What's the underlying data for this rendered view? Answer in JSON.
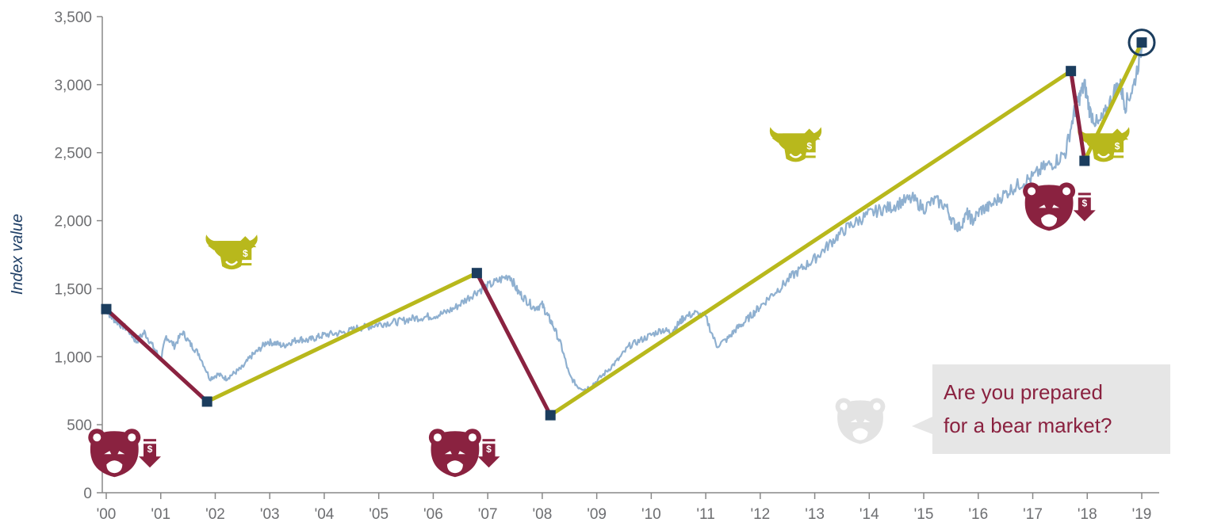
{
  "chart_data": {
    "type": "line",
    "title": "",
    "xlabel": "",
    "ylabel": "Index value",
    "ylim": [
      0,
      3500
    ],
    "xlim": [
      2000.0,
      2019.1
    ],
    "yticks": [
      0,
      500,
      1000,
      1500,
      2000,
      2500,
      3000,
      3500
    ],
    "ytick_labels": [
      "0",
      "500",
      "1,000",
      "1,500",
      "2,000",
      "2,500",
      "3,000",
      "3,500"
    ],
    "xticks": [
      2000,
      2001,
      2002,
      2003,
      2004,
      2005,
      2006,
      2007,
      2008,
      2009,
      2010,
      2011,
      2012,
      2013,
      2014,
      2015,
      2016,
      2017,
      2018,
      2019
    ],
    "xtick_labels": [
      "'00",
      "'01",
      "'02",
      "'03",
      "'04",
      "'05",
      "'06",
      "'07",
      "'08",
      "'09",
      "'10",
      "'11",
      "'12",
      "'13",
      "'14",
      "'15",
      "'16",
      "'17",
      "'18",
      "'19"
    ],
    "grid": false,
    "series": [
      {
        "kind": "index",
        "color": "#8fb0d0",
        "x": [
          2000.0,
          2000.1,
          2000.25,
          2000.4,
          2000.55,
          2000.7,
          2000.85,
          2001.0,
          2001.1,
          2001.25,
          2001.4,
          2001.55,
          2001.7,
          2001.9,
          2002.05,
          2002.2,
          2002.35,
          2002.5,
          2002.65,
          2002.8,
          2002.95,
          2003.1,
          2003.25,
          2003.4,
          2003.55,
          2003.7,
          2003.85,
          2004.0,
          2004.2,
          2004.4,
          2004.6,
          2004.8,
          2005.0,
          2005.2,
          2005.4,
          2005.6,
          2005.8,
          2006.0,
          2006.2,
          2006.4,
          2006.6,
          2006.8,
          2007.0,
          2007.2,
          2007.4,
          2007.55,
          2007.7,
          2007.85,
          2008.0,
          2008.1,
          2008.2,
          2008.35,
          2008.5,
          2008.65,
          2008.8,
          2009.0,
          2009.2,
          2009.4,
          2009.6,
          2009.8,
          2010.0,
          2010.2,
          2010.35,
          2010.5,
          2010.6,
          2010.8,
          2011.0,
          2011.2,
          2011.4,
          2011.55,
          2011.7,
          2011.85,
          2012.0,
          2012.2,
          2012.4,
          2012.6,
          2012.8,
          2013.0,
          2013.2,
          2013.4,
          2013.6,
          2013.8,
          2014.0,
          2014.2,
          2014.4,
          2014.6,
          2014.8,
          2015.0,
          2015.2,
          2015.4,
          2015.55,
          2015.65,
          2015.8,
          2015.9,
          2016.05,
          2016.2,
          2016.4,
          2016.6,
          2016.8,
          2017.0,
          2017.2,
          2017.4,
          2017.6,
          2017.75,
          2017.85,
          2017.95,
          2018.05,
          2018.2,
          2018.35,
          2018.5,
          2018.6,
          2018.7,
          2018.85,
          2019.0
        ],
        "y": [
          1350,
          1290,
          1240,
          1200,
          1110,
          1180,
          1080,
          980,
          1150,
          1080,
          1180,
          1090,
          1020,
          840,
          870,
          840,
          880,
          920,
          1000,
          1050,
          1110,
          1100,
          1080,
          1110,
          1130,
          1120,
          1140,
          1160,
          1170,
          1180,
          1210,
          1220,
          1240,
          1250,
          1260,
          1280,
          1290,
          1300,
          1320,
          1360,
          1420,
          1480,
          1520,
          1560,
          1600,
          1480,
          1420,
          1360,
          1380,
          1300,
          1230,
          1080,
          860,
          780,
          760,
          820,
          900,
          980,
          1080,
          1120,
          1160,
          1200,
          1180,
          1240,
          1290,
          1320,
          1290,
          1080,
          1130,
          1200,
          1250,
          1310,
          1370,
          1450,
          1520,
          1600,
          1660,
          1720,
          1800,
          1880,
          1950,
          2000,
          2050,
          2080,
          2100,
          2140,
          2160,
          2090,
          2150,
          2110,
          1980,
          1950,
          2050,
          2000,
          2080,
          2100,
          2170,
          2230,
          2280,
          2320,
          2390,
          2430,
          2500,
          2780,
          2900,
          3000,
          2800,
          2700,
          2800,
          2950,
          3000,
          2850,
          2990,
          3280
        ]
      }
    ],
    "phases": [
      {
        "kind": "bear",
        "start": {
          "x": 2000.0,
          "y": 1350
        },
        "end": {
          "x": 2001.85,
          "y": 670
        }
      },
      {
        "kind": "bull",
        "start": {
          "x": 2001.85,
          "y": 670
        },
        "end": {
          "x": 2006.8,
          "y": 1615
        }
      },
      {
        "kind": "bear",
        "start": {
          "x": 2006.8,
          "y": 1615
        },
        "end": {
          "x": 2008.15,
          "y": 570
        }
      },
      {
        "kind": "bull",
        "start": {
          "x": 2008.15,
          "y": 570
        },
        "end": {
          "x": 2017.7,
          "y": 3100
        }
      },
      {
        "kind": "bear",
        "start": {
          "x": 2017.7,
          "y": 3100
        },
        "end": {
          "x": 2017.95,
          "y": 2440
        }
      },
      {
        "kind": "bull",
        "start": {
          "x": 2017.95,
          "y": 2440
        },
        "end": {
          "x": 2019.0,
          "y": 3310
        }
      }
    ],
    "current_point": {
      "x": 2019.0,
      "y": 3310
    },
    "annotations": [
      {
        "icon": "bull-icon",
        "x": 2002.3,
        "y": 1770
      },
      {
        "icon": "dollar-up-arrow-icon",
        "x": 2002.55,
        "y": 1770
      },
      {
        "icon": "bear-icon",
        "x": 2000.15,
        "y": 290
      },
      {
        "icon": "dollar-down-arrow-icon",
        "x": 2000.8,
        "y": 290
      },
      {
        "icon": "bear-icon",
        "x": 2006.4,
        "y": 290
      },
      {
        "icon": "dollar-down-arrow-icon",
        "x": 2007.02,
        "y": 290
      },
      {
        "icon": "bull-icon",
        "x": 2012.65,
        "y": 2560
      },
      {
        "icon": "dollar-up-arrow-icon",
        "x": 2012.9,
        "y": 2560
      },
      {
        "icon": "bear-icon",
        "x": 2017.3,
        "y": 2100
      },
      {
        "icon": "dollar-down-arrow-icon",
        "x": 2017.95,
        "y": 2100
      },
      {
        "icon": "bull-icon",
        "x": 2018.3,
        "y": 2560
      },
      {
        "icon": "dollar-up-arrow-icon",
        "x": 2018.55,
        "y": 2560
      }
    ],
    "callout": {
      "lines": [
        "Are you prepared",
        "for a bear market?"
      ]
    },
    "colors": {
      "index": "#8fb0d0",
      "bull": "#b8b81c",
      "bear": "#8a2240",
      "marker": "#1b3d5e",
      "axis": "#888888",
      "callout_bg": "#e6e6e6",
      "ghost_bear": "#e3e3e3"
    }
  }
}
